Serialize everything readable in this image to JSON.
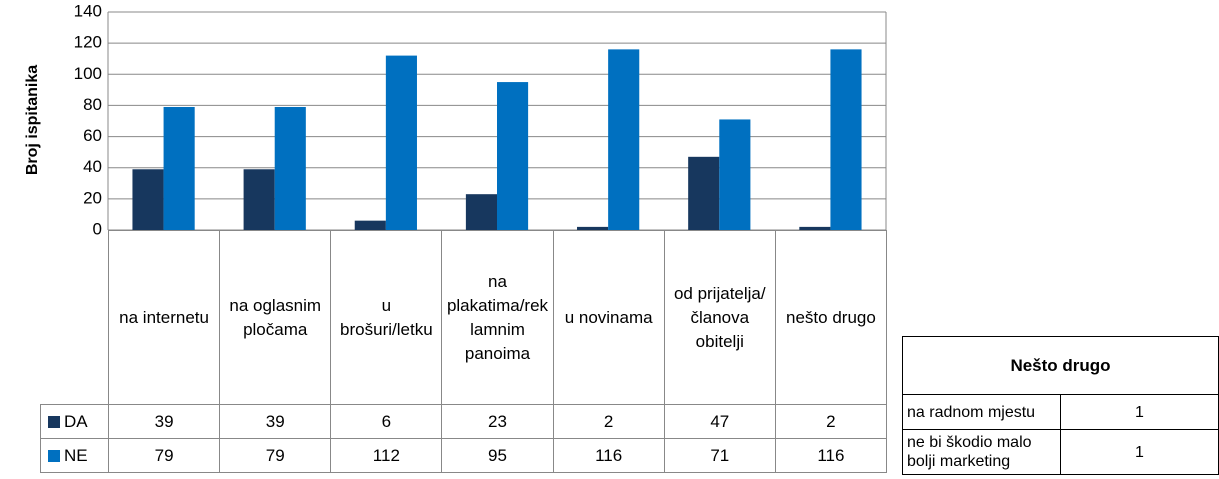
{
  "chart_data": {
    "type": "bar",
    "y_label": "Broj ispitanika",
    "categories": [
      "na internetu",
      "na oglasnim pločama",
      "u brošuri/letku",
      "na plakatima/reklamnim panoima",
      "u novinama",
      "od prijatelja/članova obitelji",
      "nešto drugo"
    ],
    "series": [
      {
        "name": "DA",
        "color": "#17375e",
        "values": [
          39,
          39,
          6,
          23,
          2,
          47,
          2
        ]
      },
      {
        "name": "NE",
        "color": "#0070c0",
        "values": [
          79,
          79,
          112,
          95,
          116,
          71,
          116
        ]
      }
    ],
    "ylim": [
      0,
      140
    ],
    "yticks": [
      0,
      20,
      40,
      60,
      80,
      100,
      120,
      140
    ],
    "grid": true
  },
  "side_table": {
    "title": "Nešto drugo",
    "rows": [
      [
        "na radnom mjestu",
        "1"
      ],
      [
        "ne bi škodio malo bolji marketing",
        "1"
      ]
    ]
  }
}
